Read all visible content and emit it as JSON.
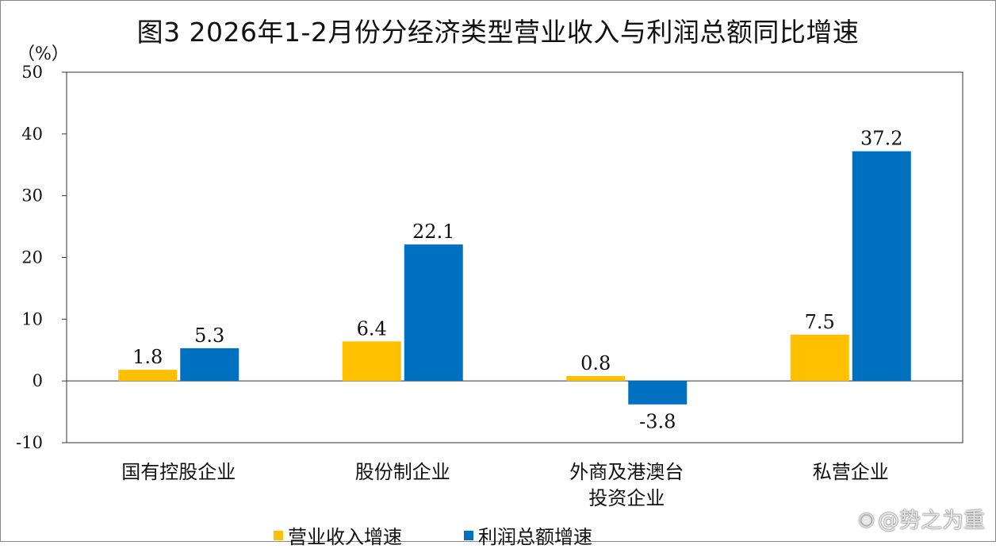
{
  "title": "图3 2026年1-2月份分经济类型营业收入与利润总额同比增速",
  "unit_label": "（%）",
  "watermark": "@势之为重",
  "chart_data": {
    "type": "bar",
    "title": "图3 2026年1-2月份分经济类型营业收入与利润总额同比增速",
    "ylabel": "（%）",
    "ylim": [
      -10,
      50
    ],
    "yticks": [
      -10,
      0,
      10,
      20,
      30,
      40,
      50
    ],
    "categories": [
      {
        "lines": [
          "国有控股企业"
        ]
      },
      {
        "lines": [
          "股份制企业"
        ]
      },
      {
        "lines": [
          "外商及港澳台",
          "投资企业"
        ]
      },
      {
        "lines": [
          "私营企业"
        ]
      }
    ],
    "series": [
      {
        "name": "营业收入增速",
        "color": "#FFC000",
        "values": [
          1.8,
          6.4,
          0.8,
          7.5
        ]
      },
      {
        "name": "利润总额增速",
        "color": "#0070C0",
        "values": [
          5.3,
          22.1,
          -3.8,
          37.2
        ]
      }
    ],
    "grid": false,
    "legend": "bottom"
  }
}
